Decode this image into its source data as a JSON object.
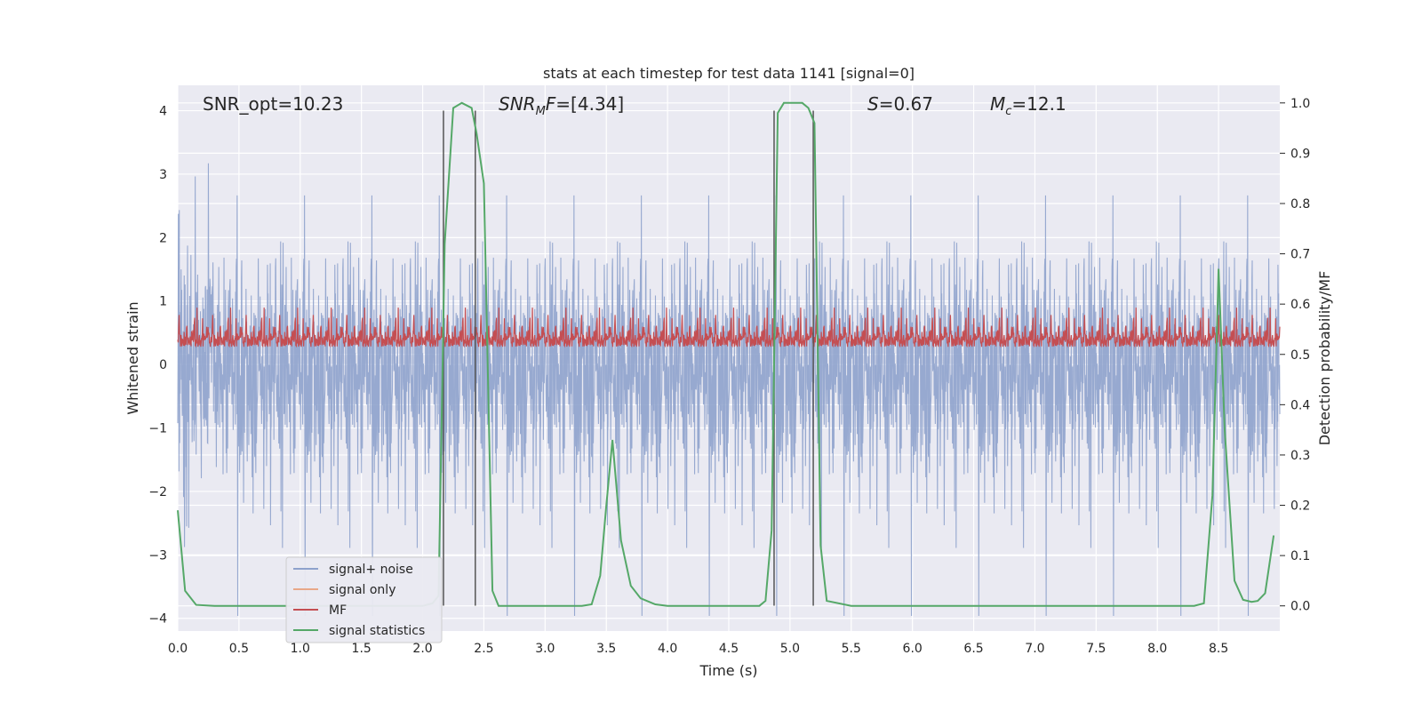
{
  "chart_data": {
    "type": "line",
    "title": "stats at each timestep for test data 1141 [signal=0]",
    "xlabel": "Time (s)",
    "ylabel": "Whitened strain",
    "ylabel_right": "Detection probability/MF",
    "xlim": [
      0,
      9
    ],
    "ylim": [
      -4.2,
      4.4
    ],
    "ylim_right": [
      -0.05,
      1.035
    ],
    "x_ticks": [
      "0.0",
      "0.5",
      "1.0",
      "1.5",
      "2.0",
      "2.5",
      "3.0",
      "3.5",
      "4.0",
      "4.5",
      "5.0",
      "5.5",
      "6.0",
      "6.5",
      "7.0",
      "7.5",
      "8.0",
      "8.5"
    ],
    "y_ticks": [
      "4",
      "3",
      "2",
      "1",
      "0",
      "−1",
      "−2",
      "−3",
      "−4"
    ],
    "y_ticks_right": [
      "1.0",
      "0.9",
      "0.8",
      "0.7",
      "0.6",
      "0.5",
      "0.4",
      "0.3",
      "0.2",
      "0.1",
      "0.0"
    ],
    "grid": true,
    "legend_position": "lower-left",
    "annotations": [
      {
        "id": "snr-opt",
        "text": "SNR_opt=10.23"
      },
      {
        "id": "snr-mf",
        "text": "=[4.34]",
        "math_main": "SNR",
        "math_sub": "M",
        "math_tail": "F"
      },
      {
        "id": "s-value",
        "text": "=0.67",
        "math_main": "S"
      },
      {
        "id": "mc-value",
        "text": "=12.1",
        "math_main": "M",
        "math_sub": "c"
      }
    ],
    "vertical_lines": [
      2.17,
      2.43,
      4.87,
      5.19
    ],
    "series": [
      {
        "name": "signal+ noise",
        "color": "#8ea2cc",
        "axis": "left",
        "description": "dense noisy strain, roughly within ±3, peaks near 4",
        "amplitude_typical": 2.2,
        "amplitude_peak": 4.0
      },
      {
        "name": "signal only",
        "color": "#e8a889",
        "axis": "left",
        "values": []
      },
      {
        "name": "MF",
        "color": "#c44e52",
        "axis": "right",
        "description": "matched filter output between 0.50 and 0.62",
        "range": [
          0.5,
          0.63
        ]
      },
      {
        "name": "signal statistics",
        "color": "#55a868",
        "axis": "right",
        "x": [
          0.0,
          0.06,
          0.15,
          0.3,
          0.5,
          1.0,
          1.5,
          2.0,
          2.08,
          2.13,
          2.18,
          2.25,
          2.32,
          2.4,
          2.44,
          2.5,
          2.57,
          2.62,
          2.8,
          3.0,
          3.3,
          3.38,
          3.45,
          3.5,
          3.55,
          3.62,
          3.7,
          3.78,
          3.9,
          4.0,
          4.5,
          4.75,
          4.8,
          4.85,
          4.9,
          4.95,
          5.0,
          5.1,
          5.15,
          5.2,
          5.25,
          5.3,
          5.5,
          6.0,
          7.0,
          8.0,
          8.3,
          8.38,
          8.45,
          8.5,
          8.55,
          8.63,
          8.7,
          8.77,
          8.82,
          8.88,
          8.95
        ],
        "values": [
          0.19,
          0.03,
          0.002,
          0.0,
          0.0,
          0.0,
          0.0,
          0.0,
          0.005,
          0.02,
          0.72,
          0.99,
          1.0,
          0.99,
          0.94,
          0.84,
          0.03,
          0.0,
          0.0,
          0.0,
          0.0,
          0.003,
          0.06,
          0.2,
          0.33,
          0.13,
          0.04,
          0.015,
          0.003,
          0.0,
          0.0,
          0.0,
          0.01,
          0.15,
          0.98,
          1.0,
          1.0,
          1.0,
          0.99,
          0.96,
          0.12,
          0.01,
          0.0,
          0.0,
          0.0,
          0.0,
          0.0,
          0.005,
          0.22,
          0.67,
          0.35,
          0.05,
          0.012,
          0.008,
          0.01,
          0.025,
          0.14
        ]
      }
    ]
  }
}
